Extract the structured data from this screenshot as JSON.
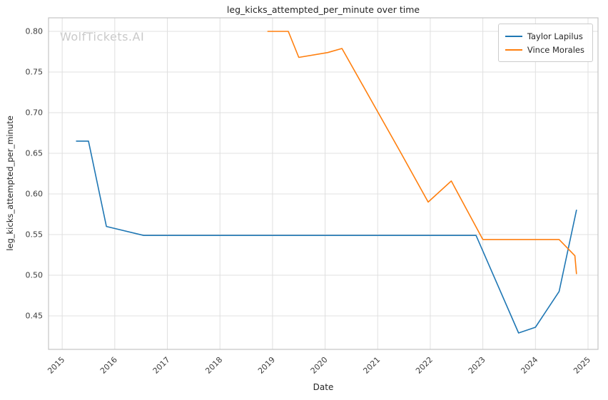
{
  "watermark": "WolfTickets.AI",
  "chart_data": {
    "type": "line",
    "title": "leg_kicks_attempted_per_minute over time",
    "xlabel": "Date",
    "ylabel": "leg_kicks_attempted_per_minute",
    "xlim": [
      2014.74,
      2025.19
    ],
    "ylim": [
      0.4088,
      0.8167
    ],
    "grid": true,
    "legend_position": "upper right",
    "xticks": {
      "values": [
        2015,
        2016,
        2017,
        2018,
        2019,
        2020,
        2021,
        2022,
        2023,
        2024,
        2025
      ],
      "labels": [
        "2015",
        "2016",
        "2017",
        "2018",
        "2019",
        "2020",
        "2021",
        "2022",
        "2023",
        "2024",
        "2025"
      ]
    },
    "yticks": {
      "values": [
        0.45,
        0.5,
        0.55,
        0.6,
        0.65,
        0.7,
        0.75,
        0.8
      ],
      "labels": [
        "0.45",
        "0.50",
        "0.55",
        "0.60",
        "0.65",
        "0.70",
        "0.75",
        "0.80"
      ]
    },
    "colors": {
      "grid": "#e0e0e0",
      "axis_border": "#c4c4c4",
      "tick_text": "#3d3d3d"
    },
    "series": [
      {
        "name": "Taylor Lapilus",
        "color": "#1f77b4",
        "points": [
          [
            2015.27,
            0.665
          ],
          [
            2015.5,
            0.665
          ],
          [
            2015.84,
            0.56
          ],
          [
            2016.55,
            0.549
          ],
          [
            2022.87,
            0.549
          ],
          [
            2023.68,
            0.429
          ],
          [
            2024.0,
            0.436
          ],
          [
            2024.45,
            0.48
          ],
          [
            2024.78,
            0.58
          ]
        ]
      },
      {
        "name": "Vince Morales",
        "color": "#ff7f0e",
        "points": [
          [
            2018.91,
            0.8
          ],
          [
            2019.3,
            0.8
          ],
          [
            2019.5,
            0.768
          ],
          [
            2020.05,
            0.774
          ],
          [
            2020.32,
            0.779
          ],
          [
            2021.42,
            0.653
          ],
          [
            2021.96,
            0.59
          ],
          [
            2022.4,
            0.616
          ],
          [
            2023.0,
            0.544
          ],
          [
            2024.45,
            0.544
          ],
          [
            2024.75,
            0.524
          ],
          [
            2024.78,
            0.502
          ]
        ]
      }
    ]
  }
}
